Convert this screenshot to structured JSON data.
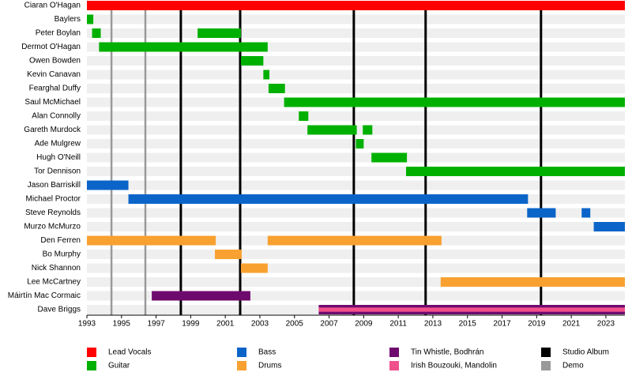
{
  "chart_data": {
    "type": "timeline",
    "categories": [
      "Ciaran O'Hagan",
      "Baylers",
      "Peter Boylan",
      "Dermot O'Hagan",
      "Owen Bowden",
      "Kevin Canavan",
      "Fearghal Duffy",
      "Saul McMichael",
      "Alan Connolly",
      "Gareth Murdock",
      "Ade Mulgrew",
      "Hugh O'Neill",
      "Tor Dennison",
      "Jason Barriskill",
      "Michael Proctor",
      "Steve Reynolds",
      "Murzo McMurzo",
      "Den Ferren",
      "Bo Murphy",
      "Nick Shannon",
      "Lee McCartney",
      "Máirtín Mac Cormaic",
      "Dave Briggs"
    ],
    "xlim": [
      1993,
      2024.1
    ],
    "xticks": [
      1993,
      1995,
      1997,
      1999,
      2001,
      2003,
      2005,
      2007,
      2009,
      2011,
      2013,
      2015,
      2017,
      2019,
      2021,
      2023
    ],
    "series": [
      {
        "name": "Lead Vocals",
        "color": "#ff0000",
        "values": [
          [
            [
              1993,
              2024.1
            ]
          ],
          null,
          null,
          null,
          null,
          null,
          null,
          null,
          null,
          null,
          null,
          null,
          null,
          null,
          null,
          null,
          null,
          null,
          null,
          null,
          null,
          null,
          null
        ]
      },
      {
        "name": "Guitar",
        "color": "#00b000",
        "values": [
          null,
          [
            [
              1993,
              1993.37
            ]
          ],
          [
            [
              1993.3,
              1993.8
            ],
            [
              1999.4,
              2001.9
            ]
          ],
          [
            [
              1993.7,
              2003.45
            ]
          ],
          [
            [
              2001.9,
              2003.2
            ]
          ],
          [
            [
              2003.2,
              2003.55
            ]
          ],
          [
            [
              2003.5,
              2004.45
            ]
          ],
          [
            [
              2004.4,
              2024.1
            ]
          ],
          [
            [
              2005.25,
              2005.8
            ]
          ],
          [
            [
              2005.75,
              2008.6
            ],
            [
              2008.95,
              2009.5
            ]
          ],
          [
            [
              2008.55,
              2009.0
            ]
          ],
          [
            [
              2009.45,
              2011.5
            ]
          ],
          [
            [
              2011.45,
              2024.1
            ]
          ],
          null,
          null,
          null,
          null,
          null,
          null,
          null,
          null,
          null,
          null
        ]
      },
      {
        "name": "Bass",
        "color": "#0b64c8",
        "values": [
          null,
          null,
          null,
          null,
          null,
          null,
          null,
          null,
          null,
          null,
          null,
          null,
          null,
          [
            [
              1993,
              1995.4
            ]
          ],
          [
            [
              1995.4,
              2018.5
            ]
          ],
          [
            [
              2018.45,
              2020.1
            ],
            [
              2021.6,
              2022.1
            ]
          ],
          [
            [
              2022.3,
              2024.1
            ]
          ],
          null,
          null,
          null,
          null,
          null,
          null
        ]
      },
      {
        "name": "Drums",
        "color": "#f8a130",
        "values": [
          null,
          null,
          null,
          null,
          null,
          null,
          null,
          null,
          null,
          null,
          null,
          null,
          null,
          null,
          null,
          null,
          null,
          [
            [
              1993,
              2000.45
            ],
            [
              2003.45,
              2013.5
            ]
          ],
          [
            [
              2000.4,
              2001.95
            ]
          ],
          [
            [
              2001.9,
              2003.45
            ]
          ],
          [
            [
              2013.45,
              2024.1
            ]
          ],
          null,
          null
        ]
      },
      {
        "name": "Tin Whistle, Bodhrán",
        "color": "#6e0a6e",
        "values": [
          null,
          null,
          null,
          null,
          null,
          null,
          null,
          null,
          null,
          null,
          null,
          null,
          null,
          null,
          null,
          null,
          null,
          null,
          null,
          null,
          null,
          [
            [
              1996.75,
              2002.45
            ]
          ],
          [
            [
              2006.4,
              2024.1
            ]
          ]
        ]
      },
      {
        "name": "Irish Bouzouki, Mandolin",
        "color": "#f0508c",
        "values": [
          null,
          null,
          null,
          null,
          null,
          null,
          null,
          null,
          null,
          null,
          null,
          null,
          null,
          null,
          null,
          null,
          null,
          null,
          null,
          null,
          null,
          null,
          [
            [
              2006.4,
              2024.1
            ]
          ]
        ]
      }
    ],
    "markers": [
      {
        "name": "Studio Album",
        "color": "#000000",
        "x": [
          1998.43,
          2001.86,
          2008.43,
          2012.58,
          2019.25
        ]
      },
      {
        "name": "Demo",
        "color": "#999999",
        "x": [
          1994.42,
          1996.38
        ]
      }
    ]
  }
}
